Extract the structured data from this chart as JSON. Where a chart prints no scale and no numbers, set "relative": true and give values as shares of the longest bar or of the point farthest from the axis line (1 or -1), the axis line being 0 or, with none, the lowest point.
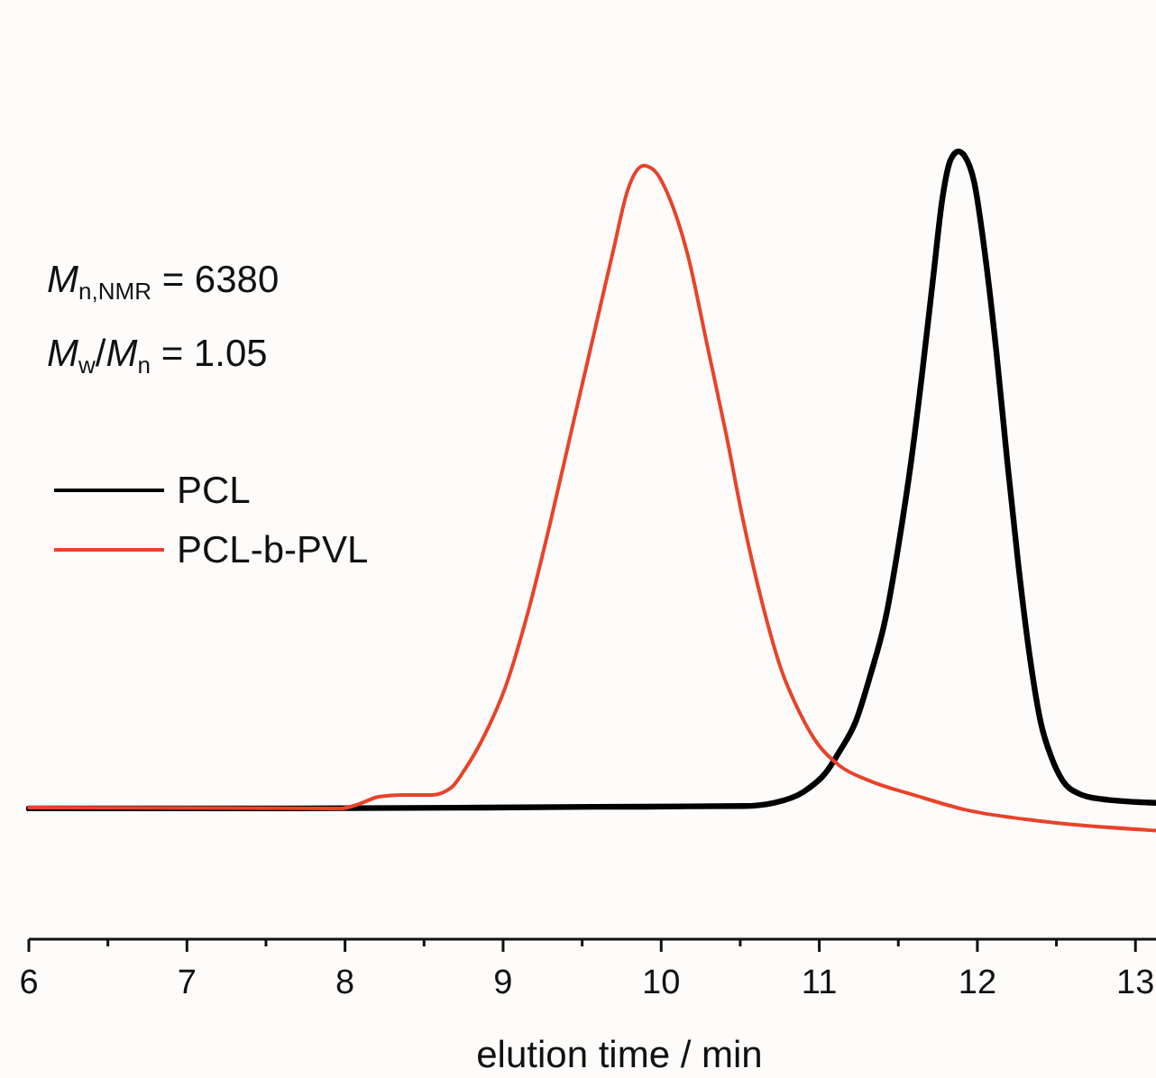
{
  "chart_data": {
    "type": "line",
    "relative": true,
    "xlabel": "elution time / min",
    "xlim": [
      6,
      13.13
    ],
    "xticks": [
      6,
      {
        "value": 6.5,
        "label": null
      },
      7,
      {
        "value": 7.5,
        "label": null
      },
      8,
      {
        "value": 8.5,
        "label": null
      },
      9,
      {
        "value": 9.5,
        "label": null
      },
      10,
      {
        "value": 10.5,
        "label": null
      },
      11,
      {
        "value": 11.5,
        "label": null
      },
      12,
      {
        "value": 12.5,
        "label": null
      },
      13
    ],
    "legend": "left",
    "grid": false,
    "annotations": [
      "M$_{n,NMR}$ = 6380",
      "M$_{w}$/M$_{n}$ = 1.05"
    ],
    "series": [
      {
        "name": "PCL",
        "color": "#000000",
        "x": [
          6.0,
          7.7,
          9.58,
          10.52,
          10.71,
          10.9,
          11.04,
          11.13,
          11.23,
          11.32,
          11.42,
          11.51,
          11.58,
          11.65,
          11.72,
          11.78,
          11.83,
          11.88,
          11.92,
          11.98,
          12.05,
          12.12,
          12.19,
          12.26,
          12.33,
          12.4,
          12.47,
          12.54,
          12.64,
          12.78,
          13.13
        ],
        "values": [
          0.166,
          0.166,
          0.168,
          0.169,
          0.173,
          0.187,
          0.211,
          0.239,
          0.276,
          0.333,
          0.408,
          0.511,
          0.605,
          0.717,
          0.839,
          0.942,
          0.989,
          1.0,
          0.994,
          0.961,
          0.867,
          0.746,
          0.605,
          0.474,
          0.361,
          0.276,
          0.23,
          0.201,
          0.185,
          0.178,
          0.173
        ]
      },
      {
        "name": "PCL-b-PVL",
        "color": "#e8432a",
        "x": [
          6.0,
          7.98,
          8.08,
          8.22,
          8.36,
          8.55,
          8.67,
          8.76,
          8.88,
          9.02,
          9.16,
          9.3,
          9.44,
          9.58,
          9.7,
          9.79,
          9.89,
          9.96,
          10.05,
          10.17,
          10.29,
          10.41,
          10.52,
          10.64,
          10.76,
          10.88,
          10.99,
          11.13,
          11.32,
          11.6,
          11.93,
          12.4,
          13.13
        ],
        "values": [
          0.167,
          0.166,
          0.171,
          0.181,
          0.183,
          0.183,
          0.192,
          0.216,
          0.258,
          0.323,
          0.417,
          0.53,
          0.652,
          0.773,
          0.877,
          0.952,
          0.982,
          0.975,
          0.942,
          0.867,
          0.755,
          0.642,
          0.53,
          0.426,
          0.342,
          0.286,
          0.248,
          0.22,
          0.201,
          0.183,
          0.164,
          0.15,
          0.138
        ]
      }
    ]
  }
}
